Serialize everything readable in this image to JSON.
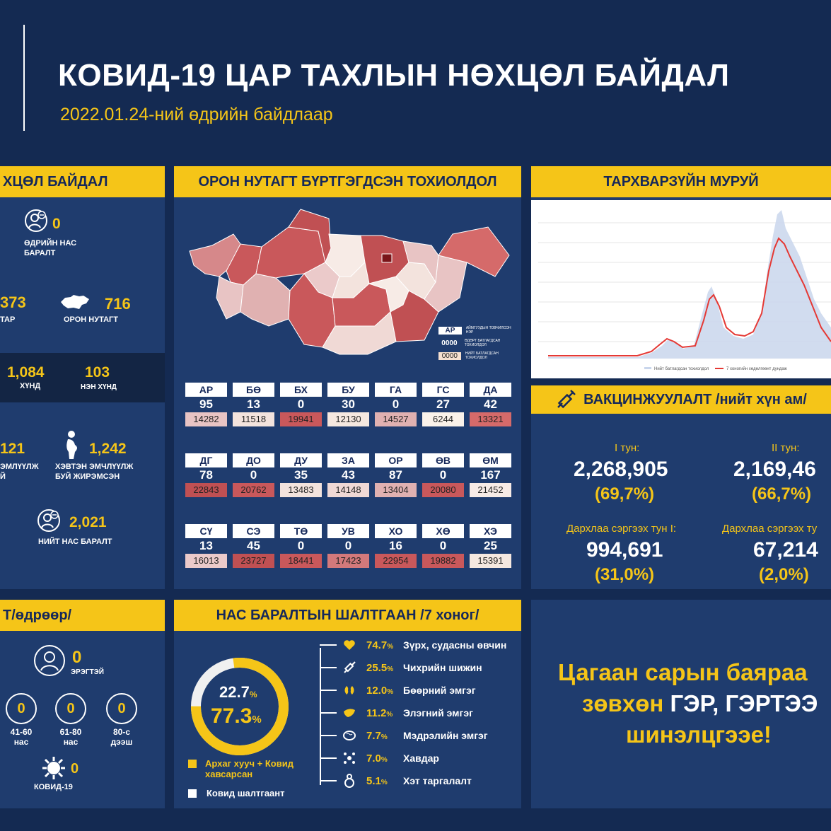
{
  "header": {
    "title": "КОВИД-19 ЦАР ТАХЛЫН НӨХЦӨЛ БАЙДАЛ",
    "date": "2022.01.24-ний өдрийн байдлаар"
  },
  "situation": {
    "head": "ХЦӨЛ БАЙДАЛ",
    "deaths_today": "0",
    "deaths_today_label": "ӨДРИЙН НАС БАРАЛТ",
    "city_value": "373",
    "city_label": "ТАР",
    "local_value": "716",
    "local_label": "ОРОН НУТАГТ",
    "severe_value": "1,084",
    "severe_label": "ХҮНД",
    "critical_value": "103",
    "critical_label": "НЭН ХҮНД",
    "hosp_value": "121",
    "hosp_label": "ЭМЛҮҮЛЖ",
    "hosp_label2": "Й",
    "pregnant_value": "1,242",
    "pregnant_label": "ХЭВТЭН ЭМЧЛҮҮЛЖ БУЙ ЖИРЭМСЭН",
    "total_deaths_value": "2,021",
    "total_deaths_label": "НИЙТ НАС БАРАЛТ"
  },
  "map_panel": {
    "head": "ОРОН НУТАГТ БҮРТГЭГДСЭН ТОХИОЛДОЛ",
    "legend_code": "АР",
    "legend_code_desc": "АЙМГУУДЫН ТОВЧИЛСОН НЭР",
    "legend_day": "0000",
    "legend_day_desc": "ӨДӨРТ БАТЛАГДСАН ТОХИОЛДОЛ",
    "legend_total": "0000",
    "legend_total_desc": "НИЙТ БАТЛАГДСАН ТОХИОЛДОЛ",
    "regions": [
      {
        "code": "АР",
        "day": "95",
        "total": "14282",
        "color": "#e8c4c4"
      },
      {
        "code": "БӨ",
        "day": "13",
        "total": "11518",
        "color": "#f3e3dd"
      },
      {
        "code": "БХ",
        "day": "0",
        "total": "19941",
        "color": "#c9585b"
      },
      {
        "code": "БУ",
        "day": "30",
        "total": "12130",
        "color": "#f5e8e0"
      },
      {
        "code": "ГА",
        "day": "0",
        "total": "14527",
        "color": "#e0b1b1"
      },
      {
        "code": "ГС",
        "day": "27",
        "total": "6244",
        "color": "#faf2ea"
      },
      {
        "code": "ДА",
        "day": "42",
        "total": "13321",
        "color": "#d56a6a"
      },
      {
        "code": "ДГ",
        "day": "78",
        "total": "22843",
        "color": "#c05053"
      },
      {
        "code": "ДО",
        "day": "0",
        "total": "20762",
        "color": "#c9585b"
      },
      {
        "code": "ДУ",
        "day": "35",
        "total": "13483",
        "color": "#f3e3dd"
      },
      {
        "code": "ЗА",
        "day": "43",
        "total": "14148",
        "color": "#f0d9d5"
      },
      {
        "code": "ОР",
        "day": "87",
        "total": "13404",
        "color": "#e0b1b1"
      },
      {
        "code": "ӨВ",
        "day": "0",
        "total": "20080",
        "color": "#c9585b"
      },
      {
        "code": "ӨМ",
        "day": "167",
        "total": "21452",
        "color": "#f7ebe6"
      },
      {
        "code": "СҮ",
        "day": "13",
        "total": "16013",
        "color": "#ebcaca"
      },
      {
        "code": "СЭ",
        "day": "45",
        "total": "23727",
        "color": "#c05053"
      },
      {
        "code": "ТӨ",
        "day": "0",
        "total": "18441",
        "color": "#c9585b"
      },
      {
        "code": "УВ",
        "day": "0",
        "total": "17423",
        "color": "#d3797b"
      },
      {
        "code": "ХО",
        "day": "16",
        "total": "22954",
        "color": "#c9585b"
      },
      {
        "code": "ХӨ",
        "day": "0",
        "total": "19882",
        "color": "#c9585b"
      },
      {
        "code": "ХЭ",
        "day": "25",
        "total": "15391",
        "color": "#f5e8e0"
      }
    ]
  },
  "curve_panel": {
    "head": "ТАРХВАРЗҮЙН МУРУЙ",
    "legend_bars": "Нийт батлагдсан тохиолдол",
    "legend_line": "7 хоногийн хөдөлгөөнт дундаж"
  },
  "vaccine": {
    "head": "ВАКЦИНЖУУЛАЛТ /нийт хүн ам/",
    "dose1_label": "I тун:",
    "dose1_value": "2,268,905",
    "dose1_pct": "(69,7%)",
    "dose2_label": "II тун:",
    "dose2_value": "2,169,46",
    "dose2_pct": "(66,7%)",
    "booster1_label": "Дархлаа сэргээх тун I:",
    "booster1_value": "994,691",
    "booster1_pct": "(31,0%)",
    "booster2_label": "Дархлаа сэргээх ту",
    "booster2_value": "67,214",
    "booster2_pct": "(2,0%)"
  },
  "daily_deaths": {
    "head": "Т/өдрөөр/",
    "male_value": "0",
    "male_label": "ЭРЭГТЭЙ",
    "age1_value": "0",
    "age1_label": "41-60 нас",
    "age2_value": "0",
    "age2_label": "61-80 нас",
    "age3_value": "0",
    "age3_label": "80-с дээш",
    "covid_value": "0",
    "covid_label": "КОВИД-19"
  },
  "causes": {
    "head": "НАС БАРАЛТЫН ШАЛТГААН /7 хоног/",
    "donut_small": "22.7",
    "donut_big": "77.3",
    "pct_sign": "%",
    "legend_chronic": "Архаг хууч + Ковид хавсарсан",
    "legend_covid": "Ковид шалтгаант",
    "items": [
      {
        "pct": "74.7",
        "label": "Зүрх, судасны өвчин",
        "icon": "heart-icon"
      },
      {
        "pct": "25.5",
        "label": "Чихрийн шижин",
        "icon": "syringe-icon"
      },
      {
        "pct": "12.0",
        "label": "Бөөрний эмгэг",
        "icon": "kidney-icon"
      },
      {
        "pct": "11.2",
        "label": "Элэгний эмгэг",
        "icon": "liver-icon"
      },
      {
        "pct": "7.7",
        "label": "Мэдрэлийн эмгэг",
        "icon": "brain-icon"
      },
      {
        "pct": "7.0",
        "label": "Хавдар",
        "icon": "cancer-icon"
      },
      {
        "pct": "5.1",
        "label": "Хэт таргалалт",
        "icon": "obesity-icon"
      }
    ]
  },
  "message": {
    "line1": "Цагаан сарын баяраа",
    "line2a": "зөвхөн",
    "line2b": "ГЭР, ГЭРТЭЭ",
    "line3": "шинэлцгээе!"
  }
}
